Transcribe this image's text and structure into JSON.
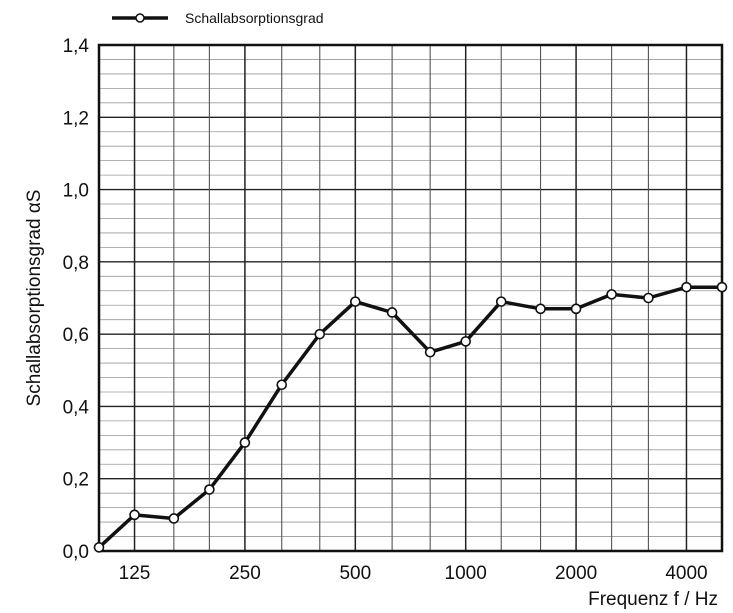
{
  "chart_data": {
    "type": "line",
    "title": "",
    "xlabel": "Frequenz f / Hz",
    "ylabel": "Schallabsorptionsgrad αS",
    "x_scale": "log",
    "x": [
      100,
      125,
      160,
      200,
      250,
      315,
      400,
      500,
      630,
      800,
      1000,
      1250,
      1600,
      2000,
      2500,
      3150,
      4000,
      5000
    ],
    "x_tick_labels": [
      "125",
      "250",
      "500",
      "1000",
      "2000",
      "4000"
    ],
    "x_tick_values": [
      125,
      250,
      500,
      1000,
      2000,
      4000
    ],
    "xlim": [
      100,
      5000
    ],
    "ylim": [
      0,
      1.4
    ],
    "y_tick_labels": [
      "0,0",
      "0,2",
      "0,4",
      "0,6",
      "0,8",
      "1,0",
      "1,2",
      "1,4"
    ],
    "y_tick_values": [
      0,
      0.2,
      0.4,
      0.6,
      0.8,
      1.0,
      1.2,
      1.4
    ],
    "grid": true,
    "legend_position": "top-left",
    "series": [
      {
        "name": "Schallabsorptionsgrad",
        "color": "#111111",
        "marker": "open-circle",
        "values": [
          0.01,
          0.1,
          0.09,
          0.17,
          0.3,
          0.46,
          0.6,
          0.69,
          0.66,
          0.55,
          0.58,
          0.69,
          0.67,
          0.67,
          0.71,
          0.7,
          0.73,
          0.73
        ]
      }
    ]
  }
}
